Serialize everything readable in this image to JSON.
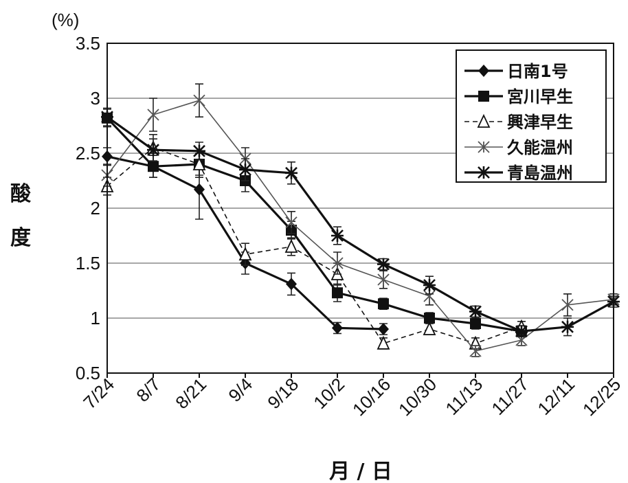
{
  "chart_data": {
    "type": "line",
    "title": "",
    "xlabel": "月 / 日",
    "ylabel": "酸度",
    "yunit": "(%)",
    "categories": [
      "7/24",
      "8/7",
      "8/21",
      "9/4",
      "9/18",
      "10/2",
      "10/16",
      "10/30",
      "11/13",
      "11/27",
      "12/11",
      "12/25"
    ],
    "y_ticks": [
      "0.5",
      "1",
      "1.5",
      "2",
      "2.5",
      "3",
      "3.5"
    ],
    "ylim": [
      0.5,
      3.5
    ],
    "grid": true,
    "legend_position": "top-right",
    "series": [
      {
        "name": "日南1号",
        "marker": "diamond",
        "dash": false,
        "color": "#111111",
        "values": [
          2.47,
          2.38,
          2.17,
          1.5,
          1.31,
          0.91,
          0.9,
          null,
          null,
          null,
          null,
          null
        ],
        "errors": [
          0.08,
          0.1,
          0.27,
          0.1,
          0.1,
          0.05,
          0.05,
          null,
          null,
          null,
          null,
          null
        ]
      },
      {
        "name": "宮川早生",
        "marker": "square",
        "dash": false,
        "color": "#111111",
        "values": [
          2.82,
          2.38,
          2.4,
          2.25,
          1.8,
          1.23,
          1.13,
          1.0,
          0.95,
          0.88,
          null,
          null
        ],
        "errors": [
          0.08,
          0.1,
          0.1,
          0.1,
          0.08,
          0.08,
          0.05,
          0.05,
          0.05,
          0.05,
          null,
          null
        ]
      },
      {
        "name": "興津早生",
        "marker": "triangle",
        "dash": true,
        "color": "#111111",
        "values": [
          2.2,
          2.55,
          2.4,
          1.58,
          1.65,
          1.4,
          0.77,
          0.9,
          0.77,
          0.92,
          null,
          null
        ],
        "errors": [
          0.08,
          0.12,
          0.12,
          0.1,
          0.08,
          0.1,
          0.05,
          0.05,
          0.05,
          0.05,
          null,
          null
        ]
      },
      {
        "name": "久能温州",
        "marker": "x",
        "dash": false,
        "color": "#555555",
        "values": [
          2.3,
          2.85,
          2.98,
          2.45,
          1.87,
          1.5,
          1.35,
          1.2,
          0.7,
          0.8,
          1.12,
          1.17
        ],
        "errors": [
          0.1,
          0.15,
          0.15,
          0.1,
          0.1,
          0.1,
          0.08,
          0.08,
          0.05,
          0.05,
          0.1,
          0.05
        ]
      },
      {
        "name": "青島温州",
        "marker": "star",
        "dash": false,
        "color": "#111111",
        "values": [
          2.83,
          2.53,
          2.52,
          2.35,
          2.32,
          1.75,
          1.49,
          1.3,
          1.06,
          0.88,
          0.92,
          1.15
        ],
        "errors": [
          0.08,
          0.1,
          0.08,
          0.1,
          0.1,
          0.08,
          0.05,
          0.08,
          0.05,
          0.05,
          0.08,
          0.05
        ]
      }
    ]
  }
}
